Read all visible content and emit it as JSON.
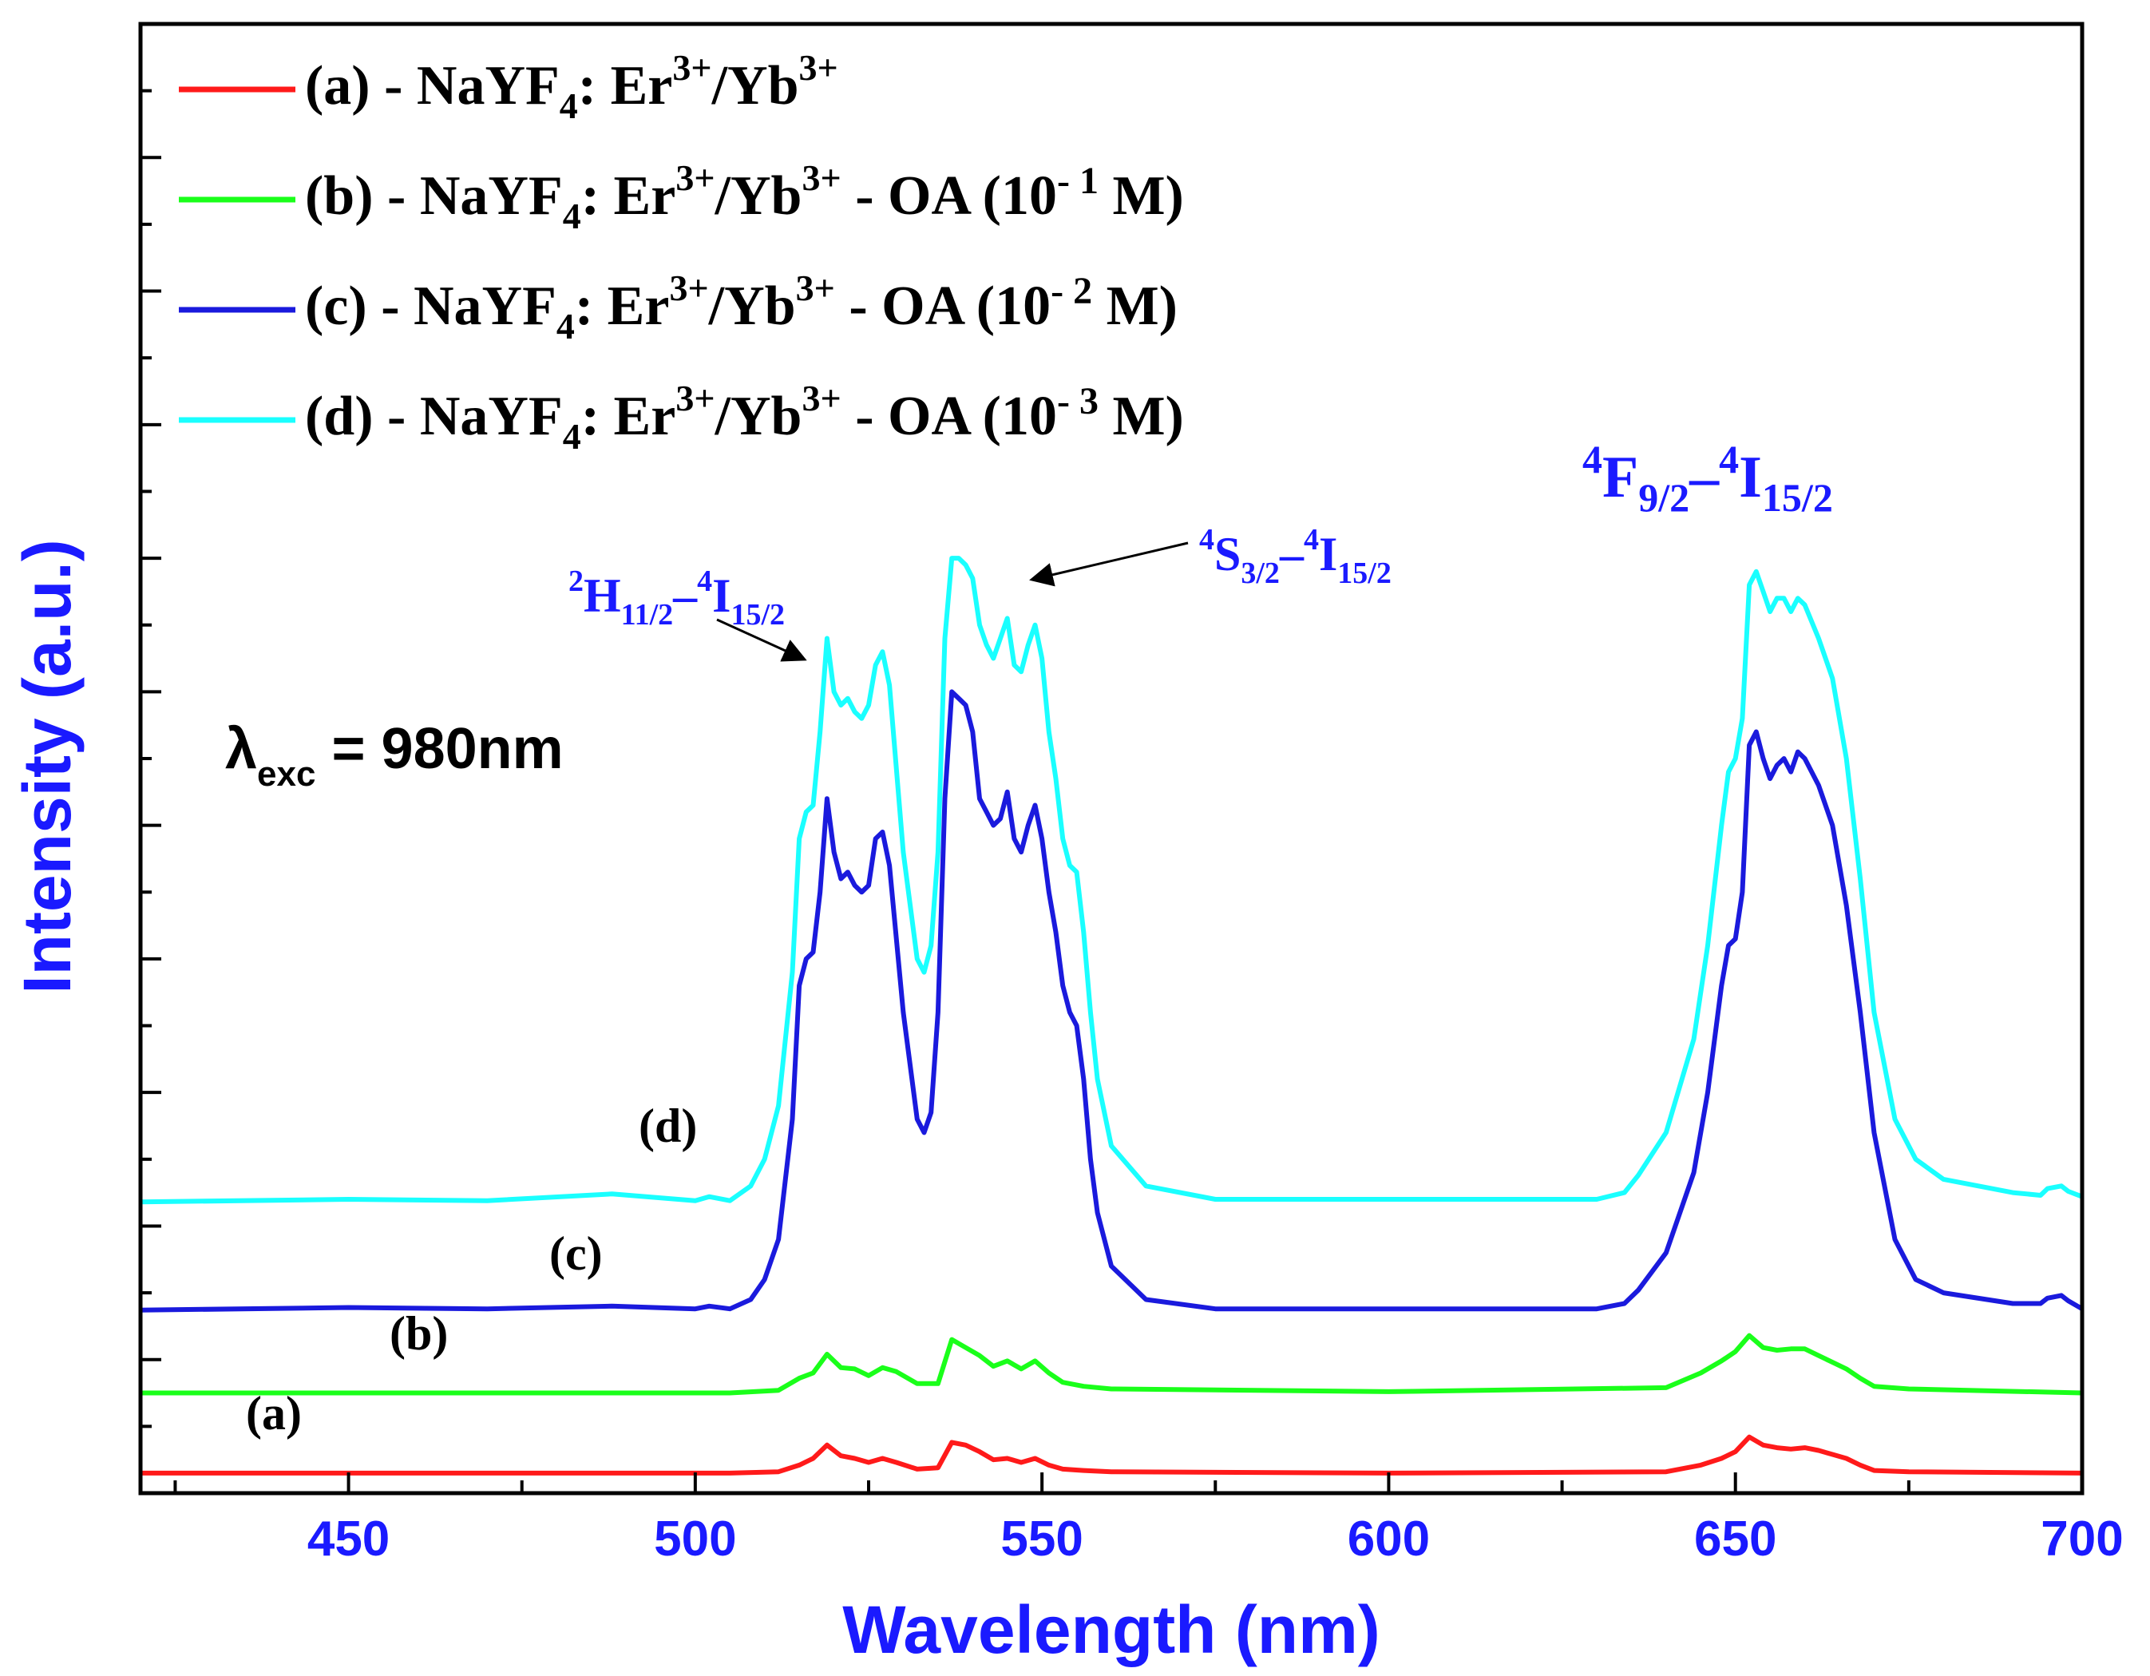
{
  "chart_data": {
    "type": "line",
    "title": "",
    "xlabel": "Wavelength (nm)",
    "ylabel": "Intensity (a.u.)",
    "xlim": [
      420,
      700
    ],
    "ylim": [
      0,
      110
    ],
    "x_ticks": [
      450,
      500,
      550,
      600,
      650,
      700
    ],
    "y_tick_labels": "none",
    "grid": false,
    "legend_position": "top-left",
    "excitation_label": {
      "symbol": "λ",
      "sub": "exc",
      "text": " = 980nm"
    },
    "series": [
      {
        "name": "(a) - NaYF4: Er3+/Yb3+",
        "label": "(a)",
        "color": "#ff1a1a",
        "legend": {
          "prefix": "(a) - NaYF",
          "sub4": "4",
          "mid": ": Er",
          "sup1": "3+",
          "slash": "/Yb",
          "sup2": "3+",
          "suffix": ""
        },
        "points": [
          [
            420,
            1.5
          ],
          [
            470,
            1.5
          ],
          [
            505,
            1.5
          ],
          [
            512,
            1.6
          ],
          [
            515,
            2.1
          ],
          [
            517,
            2.6
          ],
          [
            519,
            3.6
          ],
          [
            521,
            2.8
          ],
          [
            523,
            2.6
          ],
          [
            525,
            2.3
          ],
          [
            527,
            2.6
          ],
          [
            529,
            2.3
          ],
          [
            532,
            1.8
          ],
          [
            535,
            1.9
          ],
          [
            537,
            3.8
          ],
          [
            539,
            3.6
          ],
          [
            541,
            3.1
          ],
          [
            543,
            2.5
          ],
          [
            545,
            2.6
          ],
          [
            547,
            2.3
          ],
          [
            549,
            2.6
          ],
          [
            551,
            2.1
          ],
          [
            553,
            1.8
          ],
          [
            556,
            1.7
          ],
          [
            560,
            1.6
          ],
          [
            600,
            1.5
          ],
          [
            640,
            1.6
          ],
          [
            645,
            2.1
          ],
          [
            648,
            2.6
          ],
          [
            650,
            3.1
          ],
          [
            652,
            4.2
          ],
          [
            654,
            3.6
          ],
          [
            656,
            3.4
          ],
          [
            658,
            3.3
          ],
          [
            660,
            3.4
          ],
          [
            662,
            3.2
          ],
          [
            664,
            2.9
          ],
          [
            666,
            2.6
          ],
          [
            668,
            2.1
          ],
          [
            670,
            1.7
          ],
          [
            675,
            1.6
          ],
          [
            700,
            1.5
          ]
        ]
      },
      {
        "name": "(b) - NaYF4: Er3+/Yb3+ - OA (10-1 M)",
        "label": "(b)",
        "color": "#1aff1a",
        "legend": {
          "prefix": "(b) - NaYF",
          "sub4": "4",
          "mid": ": Er",
          "sup1": "3+",
          "slash": "/Yb",
          "sup2": "3+",
          "suffix": " - OA (10",
          "exp": "- 1",
          "end": " M)"
        },
        "points": [
          [
            420,
            7.5
          ],
          [
            470,
            7.5
          ],
          [
            505,
            7.5
          ],
          [
            512,
            7.7
          ],
          [
            515,
            8.6
          ],
          [
            517,
            9.0
          ],
          [
            519,
            10.4
          ],
          [
            521,
            9.4
          ],
          [
            523,
            9.3
          ],
          [
            525,
            8.8
          ],
          [
            527,
            9.4
          ],
          [
            529,
            9.1
          ],
          [
            532,
            8.2
          ],
          [
            535,
            8.2
          ],
          [
            537,
            11.5
          ],
          [
            539,
            10.9
          ],
          [
            541,
            10.3
          ],
          [
            543,
            9.5
          ],
          [
            545,
            9.9
          ],
          [
            547,
            9.3
          ],
          [
            549,
            9.9
          ],
          [
            551,
            9.0
          ],
          [
            553,
            8.3
          ],
          [
            556,
            8.0
          ],
          [
            560,
            7.8
          ],
          [
            600,
            7.6
          ],
          [
            640,
            7.9
          ],
          [
            645,
            9.0
          ],
          [
            648,
            9.9
          ],
          [
            650,
            10.6
          ],
          [
            652,
            11.8
          ],
          [
            654,
            10.9
          ],
          [
            656,
            10.7
          ],
          [
            658,
            10.8
          ],
          [
            660,
            10.8
          ],
          [
            662,
            10.3
          ],
          [
            664,
            9.8
          ],
          [
            666,
            9.3
          ],
          [
            668,
            8.6
          ],
          [
            670,
            8.0
          ],
          [
            675,
            7.8
          ],
          [
            700,
            7.5
          ]
        ]
      },
      {
        "name": "(c) - NaYF4: Er3+/Yb3+ - OA (10-2 M)",
        "label": "(c)",
        "color": "#1a1add",
        "legend": {
          "prefix": "(c) - NaYF",
          "sub4": "4",
          "mid": ": Er",
          "sup1": "3+",
          "slash": "/Yb",
          "sup2": "3+",
          "suffix": " - OA (10",
          "exp": "- 2",
          "end": " M)"
        },
        "points": [
          [
            420,
            13.7
          ],
          [
            450,
            13.9
          ],
          [
            470,
            13.8
          ],
          [
            488,
            14.0
          ],
          [
            500,
            13.8
          ],
          [
            502,
            14.0
          ],
          [
            505,
            13.8
          ],
          [
            508,
            14.5
          ],
          [
            510,
            16.0
          ],
          [
            512,
            19.0
          ],
          [
            514,
            28.0
          ],
          [
            515,
            38.0
          ],
          [
            516,
            40.0
          ],
          [
            517,
            40.5
          ],
          [
            518,
            45.0
          ],
          [
            519,
            52.0
          ],
          [
            520,
            48.0
          ],
          [
            521,
            46.0
          ],
          [
            522,
            46.5
          ],
          [
            523,
            45.5
          ],
          [
            524,
            45.0
          ],
          [
            525,
            45.5
          ],
          [
            526,
            49.0
          ],
          [
            527,
            49.5
          ],
          [
            528,
            47.0
          ],
          [
            530,
            36.0
          ],
          [
            532,
            28.0
          ],
          [
            533,
            27.0
          ],
          [
            534,
            28.5
          ],
          [
            535,
            36.0
          ],
          [
            536,
            52.0
          ],
          [
            537,
            60.0
          ],
          [
            538,
            59.5
          ],
          [
            539,
            59.0
          ],
          [
            540,
            57.0
          ],
          [
            541,
            52.0
          ],
          [
            542,
            51.0
          ],
          [
            543,
            50.0
          ],
          [
            544,
            50.5
          ],
          [
            545,
            52.5
          ],
          [
            546,
            49.0
          ],
          [
            547,
            48.0
          ],
          [
            548,
            50.0
          ],
          [
            549,
            51.5
          ],
          [
            550,
            49.0
          ],
          [
            551,
            45.0
          ],
          [
            552,
            42.0
          ],
          [
            553,
            38.0
          ],
          [
            554,
            36.0
          ],
          [
            555,
            35.0
          ],
          [
            556,
            31.0
          ],
          [
            557,
            25.0
          ],
          [
            558,
            21.0
          ],
          [
            560,
            17.0
          ],
          [
            565,
            14.5
          ],
          [
            575,
            13.8
          ],
          [
            630,
            13.8
          ],
          [
            634,
            14.2
          ],
          [
            636,
            15.2
          ],
          [
            640,
            18.0
          ],
          [
            644,
            24.0
          ],
          [
            646,
            30.0
          ],
          [
            648,
            38.0
          ],
          [
            649,
            41.0
          ],
          [
            650,
            41.5
          ],
          [
            651,
            45.0
          ],
          [
            652,
            56.0
          ],
          [
            653,
            57.0
          ],
          [
            654,
            55.0
          ],
          [
            655,
            53.5
          ],
          [
            656,
            54.5
          ],
          [
            657,
            55.0
          ],
          [
            658,
            54.0
          ],
          [
            659,
            55.5
          ],
          [
            660,
            55.0
          ],
          [
            662,
            53.0
          ],
          [
            664,
            50.0
          ],
          [
            666,
            44.0
          ],
          [
            668,
            36.0
          ],
          [
            670,
            27.0
          ],
          [
            673,
            19.0
          ],
          [
            676,
            16.0
          ],
          [
            680,
            15.0
          ],
          [
            690,
            14.2
          ],
          [
            694,
            14.2
          ],
          [
            695,
            14.6
          ],
          [
            697,
            14.8
          ],
          [
            698,
            14.4
          ],
          [
            700,
            13.8
          ]
        ]
      },
      {
        "name": "(d) - NaYF4: Er3+/Yb3+ - OA (10-3 M)",
        "label": "(d)",
        "color": "#1affff",
        "legend": {
          "prefix": "(d) - NaYF",
          "sub4": "4",
          "mid": ": Er",
          "sup1": "3+",
          "slash": "/Yb",
          "sup2": "3+",
          "suffix": " - OA (10",
          "exp": "- 3",
          "end": " M)"
        },
        "points": [
          [
            420,
            21.8
          ],
          [
            450,
            22.0
          ],
          [
            470,
            21.9
          ],
          [
            488,
            22.4
          ],
          [
            500,
            21.9
          ],
          [
            502,
            22.2
          ],
          [
            505,
            21.9
          ],
          [
            508,
            23.0
          ],
          [
            510,
            25.0
          ],
          [
            512,
            29.0
          ],
          [
            514,
            39.0
          ],
          [
            515,
            49.0
          ],
          [
            516,
            51.0
          ],
          [
            517,
            51.5
          ],
          [
            518,
            57.0
          ],
          [
            519,
            64.0
          ],
          [
            520,
            60.0
          ],
          [
            521,
            59.0
          ],
          [
            522,
            59.5
          ],
          [
            523,
            58.5
          ],
          [
            524,
            58.0
          ],
          [
            525,
            59.0
          ],
          [
            526,
            62.0
          ],
          [
            527,
            63.0
          ],
          [
            528,
            60.5
          ],
          [
            530,
            48.0
          ],
          [
            532,
            40.0
          ],
          [
            533,
            39.0
          ],
          [
            534,
            41.0
          ],
          [
            535,
            48.0
          ],
          [
            536,
            64.0
          ],
          [
            537,
            70.0
          ],
          [
            538,
            70.0
          ],
          [
            539,
            69.5
          ],
          [
            540,
            68.5
          ],
          [
            541,
            65.0
          ],
          [
            542,
            63.5
          ],
          [
            543,
            62.5
          ],
          [
            544,
            64.0
          ],
          [
            545,
            65.5
          ],
          [
            546,
            62.0
          ],
          [
            547,
            61.5
          ],
          [
            548,
            63.5
          ],
          [
            549,
            65.0
          ],
          [
            550,
            62.5
          ],
          [
            551,
            57.0
          ],
          [
            552,
            53.5
          ],
          [
            553,
            49.0
          ],
          [
            554,
            47.0
          ],
          [
            555,
            46.5
          ],
          [
            556,
            42.0
          ],
          [
            557,
            36.0
          ],
          [
            558,
            31.0
          ],
          [
            560,
            26.0
          ],
          [
            565,
            23.0
          ],
          [
            575,
            22.0
          ],
          [
            630,
            22.0
          ],
          [
            634,
            22.5
          ],
          [
            636,
            23.8
          ],
          [
            640,
            27.0
          ],
          [
            644,
            34.0
          ],
          [
            646,
            41.0
          ],
          [
            648,
            50.0
          ],
          [
            649,
            54.0
          ],
          [
            650,
            55.0
          ],
          [
            651,
            58.0
          ],
          [
            652,
            68.0
          ],
          [
            653,
            69.0
          ],
          [
            654,
            67.5
          ],
          [
            655,
            66.0
          ],
          [
            656,
            67.0
          ],
          [
            657,
            67.0
          ],
          [
            658,
            66.0
          ],
          [
            659,
            67.0
          ],
          [
            660,
            66.5
          ],
          [
            662,
            64.0
          ],
          [
            664,
            61.0
          ],
          [
            666,
            55.0
          ],
          [
            668,
            46.0
          ],
          [
            670,
            36.0
          ],
          [
            673,
            28.0
          ],
          [
            676,
            25.0
          ],
          [
            680,
            23.5
          ],
          [
            690,
            22.5
          ],
          [
            694,
            22.3
          ],
          [
            695,
            22.8
          ],
          [
            697,
            23.0
          ],
          [
            698,
            22.6
          ],
          [
            700,
            22.2
          ]
        ]
      }
    ],
    "annotations": [
      {
        "main": "H",
        "pre": "2",
        "sub": "11/2",
        "dash": "–",
        "pre2": "4",
        "main2": "I",
        "sub2": "15/2"
      },
      {
        "main": "S",
        "pre": "4",
        "sub": "3/2",
        "dash": "–",
        "pre2": "4",
        "main2": "I",
        "sub2": "15/2"
      },
      {
        "main": "F",
        "pre": "4",
        "sub": "9/2",
        "dash": "–",
        "pre2": "4",
        "main2": "I",
        "sub2": "15/2"
      }
    ]
  }
}
